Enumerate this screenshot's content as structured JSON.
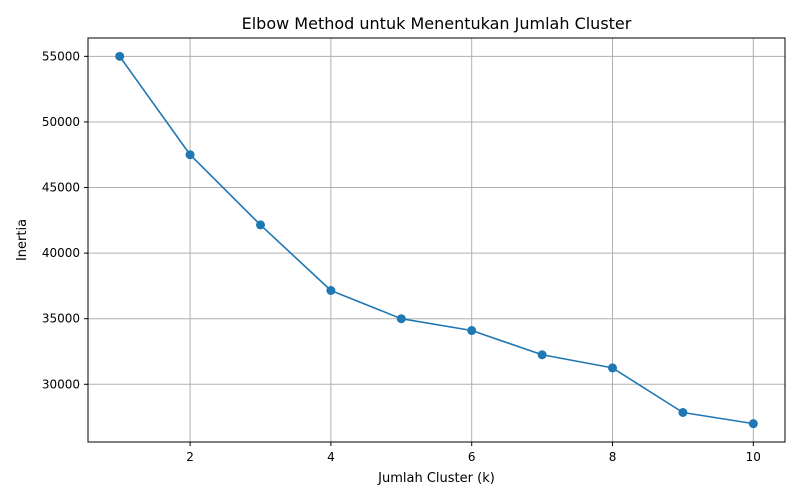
{
  "chart_data": {
    "type": "line",
    "title": "Elbow Method untuk Menentukan Jumlah Cluster",
    "xlabel": "Jumlah Cluster (k)",
    "ylabel": "Inertia",
    "x": [
      1,
      2,
      3,
      4,
      5,
      6,
      7,
      8,
      9,
      10
    ],
    "series": [
      {
        "values": [
          55000,
          47500,
          42150,
          37150,
          35000,
          34100,
          32250,
          31250,
          27850,
          27000
        ],
        "color": "#1f77b4",
        "marker": "circle"
      }
    ],
    "xlim": [
      0.55,
      10.45
    ],
    "ylim": [
      25600,
      56400
    ],
    "xticks": [
      2,
      4,
      6,
      8,
      10
    ],
    "xtick_labels": [
      "2",
      "4",
      "6",
      "8",
      "10"
    ],
    "yticks": [
      30000,
      35000,
      40000,
      45000,
      50000,
      55000
    ],
    "ytick_labels": [
      "30000",
      "35000",
      "40000",
      "45000",
      "50000",
      "55000"
    ],
    "grid": true,
    "grid_color": "#b0b0b0"
  }
}
